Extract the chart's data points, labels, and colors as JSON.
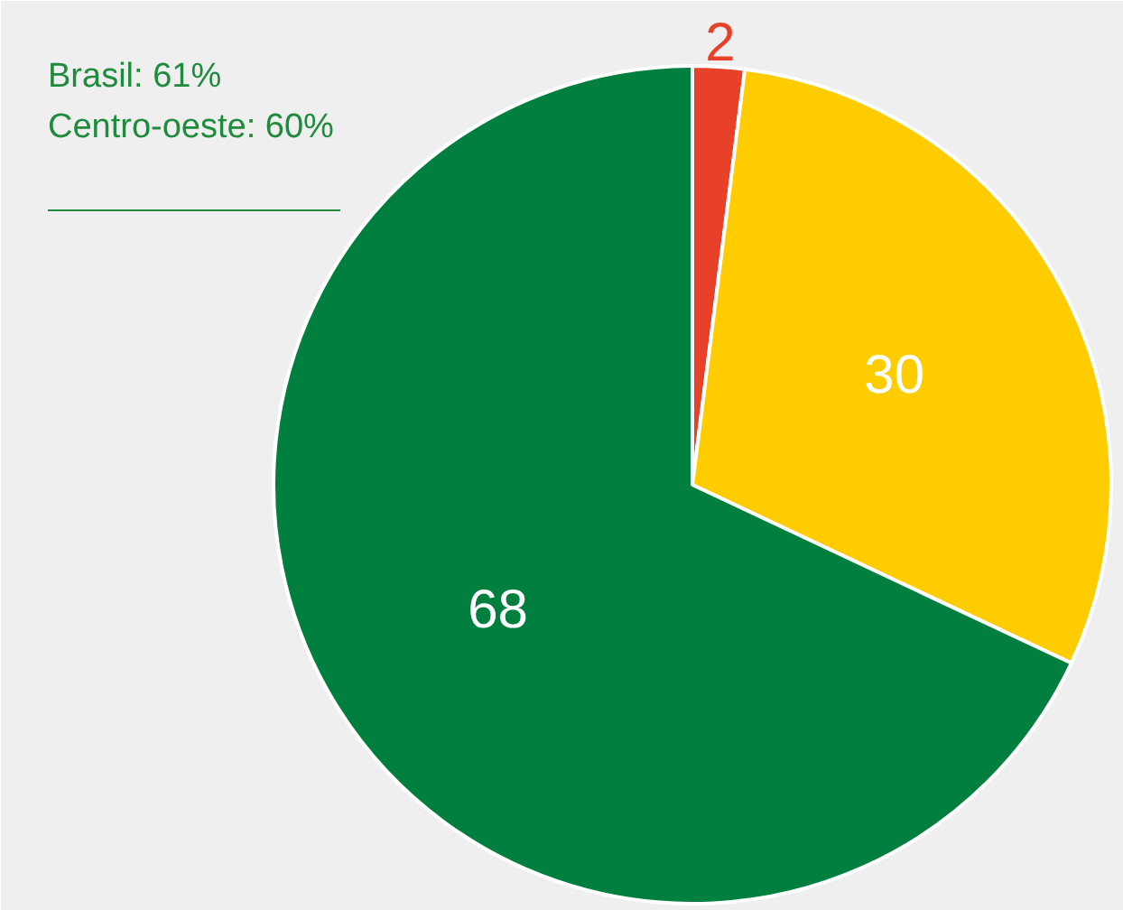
{
  "chart_data": {
    "type": "pie",
    "categories": [
      null,
      null,
      null
    ],
    "values": [
      2,
      30,
      68
    ],
    "colors": [
      "#e8412a",
      "#ffcc00",
      "#007f3f"
    ],
    "data_labels": true,
    "annotations": [
      "Brasil: 61%",
      "Centro-oeste: 60%"
    ]
  }
}
